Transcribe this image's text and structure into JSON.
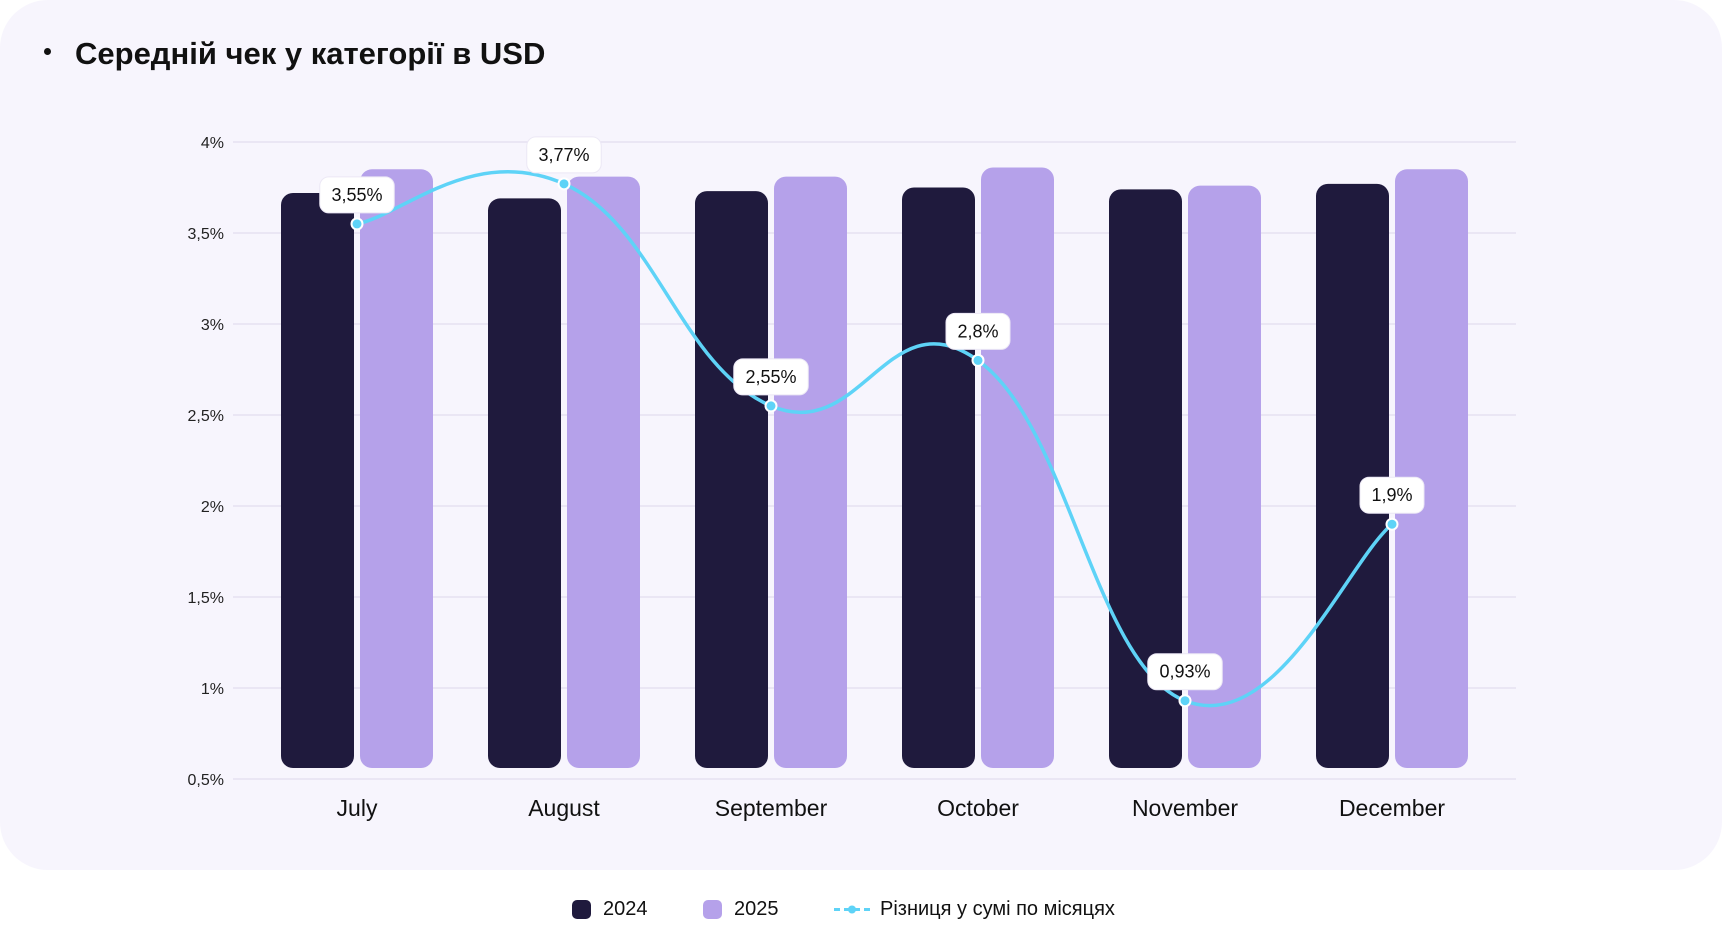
{
  "header": {
    "title": "Середній чек у категорії в USD"
  },
  "colors": {
    "card_bg": "#f7f5fd",
    "series_2024": "#1f1a3d",
    "series_2025": "#b5a1ea",
    "line": "#5ed3f7",
    "grid": "#e6e2f1"
  },
  "legend": {
    "items": [
      {
        "label": "2024",
        "kind": "bar"
      },
      {
        "label": "2025",
        "kind": "bar"
      },
      {
        "label": "Різниця у сумі по місяцях",
        "kind": "line"
      }
    ]
  },
  "chart_data": {
    "type": "bar",
    "title": "Середній чек у категорії в USD",
    "categories": [
      "July",
      "August",
      "September",
      "October",
      "November",
      "December"
    ],
    "ylim": [
      0.5,
      4
    ],
    "yticks": [
      0.5,
      1,
      1.5,
      2,
      2.5,
      3,
      3.5,
      4
    ],
    "ytick_labels": [
      "0,5%",
      "1%",
      "1,5%",
      "2%",
      "2,5%",
      "3%",
      "3,5%",
      "4%"
    ],
    "series": [
      {
        "name": "2024",
        "type": "bar",
        "values": [
          3.72,
          3.69,
          3.73,
          3.75,
          3.74,
          3.77
        ]
      },
      {
        "name": "2025",
        "type": "bar",
        "values": [
          3.85,
          3.81,
          3.81,
          3.86,
          3.76,
          3.85
        ]
      },
      {
        "name": "Різниця у сумі по місяцях",
        "type": "line",
        "values": [
          3.55,
          3.77,
          2.55,
          2.8,
          0.93,
          1.9
        ],
        "labels": [
          "3,55%",
          "3,77%",
          "2,55%",
          "2,8%",
          "0,93%",
          "1,9%"
        ]
      }
    ],
    "xlabel": "",
    "ylabel": "",
    "grid": true,
    "legend_position": "bottom-center"
  }
}
